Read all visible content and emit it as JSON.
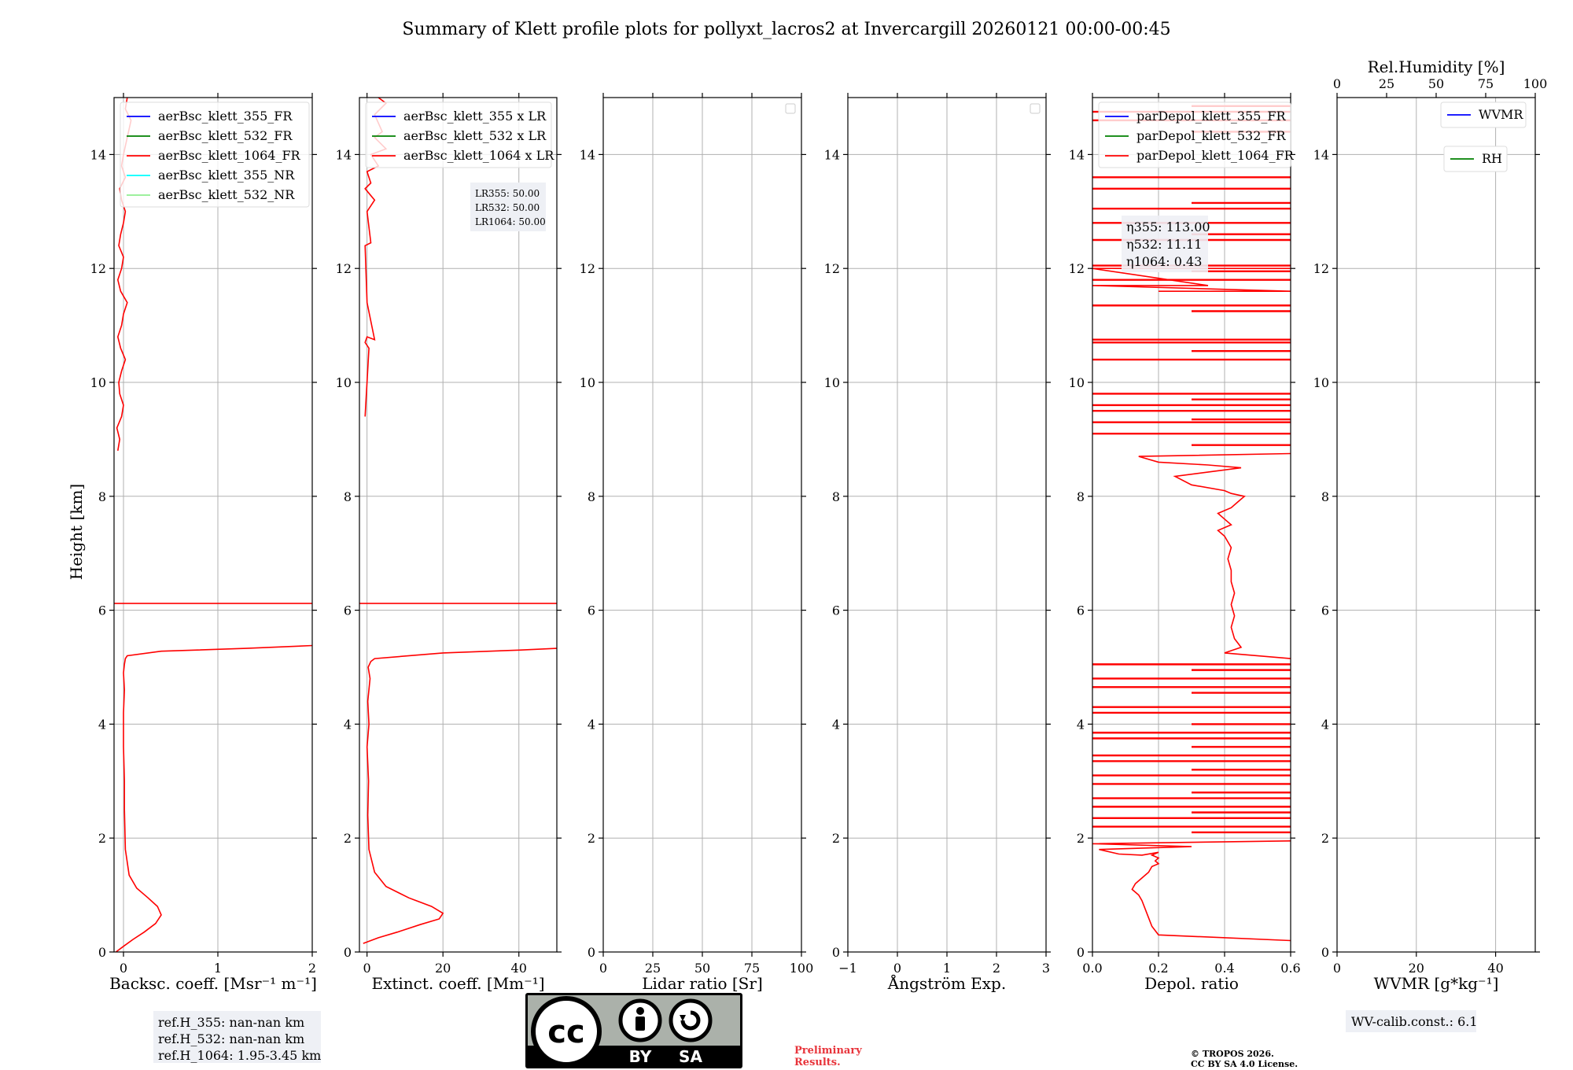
{
  "figure": {
    "title": "Summary of Klett profile plots for pollyxt_lacros2 at Invercargill 20260121 00:00-00:45",
    "ylabel": "Height [km]",
    "y_ticks": [
      "0",
      "2",
      "4",
      "6",
      "8",
      "10",
      "12",
      "14"
    ]
  },
  "colors": {
    "red": "#ff0000",
    "blue": "#0000ff",
    "green": "#008000",
    "cyan": "#00ffff",
    "lightgreen": "#90ee90",
    "grid": "#b0b0b0",
    "boxbg": "#eef0f5",
    "pred": "#e8343b"
  },
  "chart_data": [
    {
      "type": "line",
      "xlabel": "Backsc. coeff. [Msr⁻¹ m⁻¹]",
      "xlim": [
        -0.1,
        2
      ],
      "ylim": [
        0,
        15
      ],
      "x_ticks": [
        "0",
        "1",
        "2"
      ],
      "legend": [
        "aerBsc_klett_355_FR",
        "aerBsc_klett_532_FR",
        "aerBsc_klett_1064_FR",
        "aerBsc_klett_355_NR",
        "aerBsc_klett_532_NR"
      ],
      "series": [
        {
          "name": "aerBsc_klett_1064_FR",
          "x": [
            -0.08,
            0.0,
            0.1,
            0.22,
            0.34,
            0.4,
            0.36,
            0.26,
            0.14,
            0.06,
            0.02,
            0.01,
            0.01,
            0.0,
            0.0,
            0.01,
            0.0,
            0.01,
            0.02,
            0.04,
            0.4,
            1.3,
            2.0
          ],
          "y": [
            0.0,
            0.1,
            0.22,
            0.35,
            0.5,
            0.65,
            0.8,
            0.95,
            1.12,
            1.35,
            1.8,
            2.5,
            3.0,
            3.6,
            4.2,
            4.6,
            4.9,
            5.05,
            5.15,
            5.2,
            5.28,
            5.33,
            5.38
          ]
        },
        {
          "name": "aerBsc_klett_1064_FR_upper",
          "x": [
            -0.06,
            -0.04,
            -0.07,
            -0.02,
            0.0,
            -0.04,
            -0.05,
            -0.02,
            0.02,
            -0.03,
            -0.06,
            -0.02,
            0.0,
            0.04,
            -0.03,
            -0.06,
            -0.02,
            0.0,
            -0.05,
            -0.03,
            0.0,
            0.02,
            -0.02,
            -0.04,
            0.02,
            -0.02,
            0.0,
            0.04,
            0.08,
            0.02,
            0.04
          ],
          "y": [
            8.8,
            9.0,
            9.2,
            9.4,
            9.6,
            9.8,
            10.0,
            10.2,
            10.4,
            10.6,
            10.8,
            11.0,
            11.2,
            11.4,
            11.6,
            11.8,
            12.0,
            12.2,
            12.4,
            12.6,
            12.8,
            13.0,
            13.2,
            13.4,
            13.6,
            13.8,
            14.0,
            14.3,
            14.6,
            14.8,
            15.0
          ]
        },
        {
          "name": "aerBsc_klett_1064_FR_hline",
          "x": [
            -0.1,
            2.0
          ],
          "y": [
            6.12,
            6.12
          ]
        }
      ],
      "annotation": [
        "ref.H_355: nan-nan km",
        "ref.H_532: nan-nan km",
        "ref.H_1064: 1.95-3.45 km"
      ]
    },
    {
      "type": "line",
      "xlabel": "Extinct. coeff. [Mm⁻¹]",
      "xlim": [
        -2,
        50
      ],
      "ylim": [
        0,
        15
      ],
      "x_ticks": [
        "0",
        "20",
        "40"
      ],
      "legend": [
        "aerBsc_klett_355 x LR",
        "aerBsc_klett_532 x LR",
        "aerBsc_klett_1064 x LR"
      ],
      "series": [
        {
          "name": "aerBsc_klett_1064 x LR",
          "x": [
            -1.0,
            3.0,
            8.0,
            14.0,
            19.0,
            20.0,
            17.0,
            11.0,
            5.0,
            2.0,
            0.5,
            0.2,
            0.4,
            0.0,
            0.5,
            0.2,
            0.8,
            0.3,
            1.0,
            2.0,
            20.0,
            40.0,
            50.0
          ],
          "y": [
            0.15,
            0.25,
            0.35,
            0.48,
            0.58,
            0.68,
            0.8,
            0.95,
            1.15,
            1.4,
            1.8,
            2.4,
            3.0,
            3.6,
            4.0,
            4.4,
            4.8,
            5.0,
            5.1,
            5.15,
            5.25,
            5.3,
            5.33
          ]
        },
        {
          "name": "aerBsc_klett_1064 x LR_upper",
          "x": [
            -0.5,
            0.5,
            -0.5,
            0.0,
            2.0,
            0.0,
            -0.5,
            1.0,
            0.0,
            2.0,
            -0.5,
            1.0,
            0.0,
            3.0,
            1.0,
            5.0,
            2.0,
            4.0,
            2.0,
            5.0,
            3.0
          ],
          "y": [
            9.4,
            10.6,
            10.7,
            10.8,
            10.75,
            11.4,
            12.4,
            12.45,
            13.0,
            13.2,
            13.4,
            13.5,
            13.7,
            13.8,
            14.0,
            14.1,
            14.3,
            14.4,
            14.7,
            14.9,
            15.0
          ]
        },
        {
          "name": "aerBsc_klett_1064 x LR_hline",
          "x": [
            -2.0,
            50.0
          ],
          "y": [
            6.12,
            6.12
          ]
        }
      ],
      "annotation": [
        "LR355: 50.00",
        "LR532: 50.00",
        "LR1064: 50.00"
      ]
    },
    {
      "type": "line",
      "xlabel": "Lidar ratio [Sr]",
      "xlim": [
        0,
        100
      ],
      "ylim": [
        0,
        15
      ],
      "x_ticks": [
        "0",
        "25",
        "50",
        "75",
        "100"
      ],
      "legend": [],
      "series": []
    },
    {
      "type": "line",
      "xlabel": "Ångström Exp.",
      "xlim": [
        -1,
        3
      ],
      "ylim": [
        0,
        15
      ],
      "x_ticks": [
        "−1",
        "0",
        "1",
        "2",
        "3"
      ],
      "legend": [],
      "series": []
    },
    {
      "type": "line",
      "xlabel": "Depol. ratio",
      "xlim": [
        0,
        0.6
      ],
      "ylim": [
        0,
        15
      ],
      "x_ticks": [
        "0.0",
        "0.2",
        "0.4",
        "0.6"
      ],
      "legend": [
        "parDepol_klett_355_FR",
        "parDepol_klett_532_FR",
        "parDepol_klett_1064_FR"
      ],
      "series": [
        {
          "name": "parDepol_klett_1064_FR_low",
          "x": [
            0.6,
            0.2,
            0.18,
            0.17,
            0.16,
            0.15,
            0.14,
            0.13,
            0.12,
            0.13,
            0.15,
            0.17,
            0.18,
            0.2,
            0.19,
            0.2,
            0.18,
            0.2,
            0.15,
            0.08,
            0.02,
            0.3,
            0.0,
            0.6
          ],
          "y": [
            0.2,
            0.3,
            0.45,
            0.6,
            0.75,
            0.9,
            1.0,
            1.05,
            1.1,
            1.2,
            1.3,
            1.4,
            1.5,
            1.55,
            1.6,
            1.65,
            1.7,
            1.75,
            1.7,
            1.72,
            1.8,
            1.85,
            1.9,
            1.95
          ]
        },
        {
          "name": "parDepol_klett_1064_FR_mid",
          "x": [
            0.6,
            0.4,
            0.45,
            0.43,
            0.42,
            0.43,
            0.42,
            0.43,
            0.42,
            0.42,
            0.41,
            0.42,
            0.4,
            0.38,
            0.42,
            0.4,
            0.38,
            0.42,
            0.44,
            0.46,
            0.42,
            0.4,
            0.3,
            0.25,
            0.45,
            0.35,
            0.2,
            0.14,
            0.6
          ],
          "y": [
            5.15,
            5.25,
            5.35,
            5.5,
            5.7,
            5.9,
            6.1,
            6.3,
            6.5,
            6.7,
            6.9,
            7.1,
            7.3,
            7.4,
            7.5,
            7.6,
            7.7,
            7.8,
            7.9,
            8.0,
            8.05,
            8.1,
            8.2,
            8.35,
            8.5,
            8.55,
            8.6,
            8.7,
            8.75
          ]
        },
        {
          "name": "parDepol_klett_1064_FR_high",
          "x": [
            0.2,
            0.6,
            0.0,
            0.35,
            0.0,
            0.6
          ],
          "y": [
            11.6,
            11.6,
            11.7,
            11.7,
            12.0,
            12.0
          ]
        }
      ],
      "hlines_low": [
        2.1,
        2.2,
        2.35,
        2.45,
        2.55,
        2.7,
        2.8,
        2.95,
        3.1,
        3.2,
        3.35,
        3.45,
        3.6,
        3.75,
        3.85,
        4.0,
        4.2,
        4.3,
        4.55,
        4.65,
        4.8,
        4.95,
        5.05
      ],
      "hlines_high": [
        8.9,
        9.1,
        9.3,
        9.35,
        9.5,
        9.6,
        9.7,
        9.8,
        10.4,
        10.55,
        10.7,
        10.75,
        11.25,
        11.35,
        11.8,
        11.95,
        12.05,
        12.5,
        12.6,
        12.8,
        13.05,
        13.15,
        13.4,
        13.6,
        14.4,
        14.6,
        14.75,
        14.85
      ],
      "annotation": [
        "η355: 113.00",
        "η532: 11.11",
        "η1064: 0.43"
      ]
    },
    {
      "type": "line",
      "xlabel": "WVMR [g*kg⁻¹]",
      "top_xlabel": "Rel.Humidity [%]",
      "xlim": [
        0,
        50
      ],
      "ylim": [
        0,
        15
      ],
      "x_ticks": [
        "0",
        "20",
        "40"
      ],
      "top_ticks": [
        "0",
        "25",
        "50",
        "75",
        "100"
      ],
      "legend": [
        "WVMR",
        "RH"
      ],
      "series": [],
      "annotation": [
        "WV-calib.const.: 6.1"
      ]
    }
  ],
  "footer": {
    "license_badge": {
      "cc": "cc",
      "by": "BY",
      "sa": "SA"
    },
    "preliminary_line1": "Preliminary",
    "preliminary_line2": "Results.",
    "copyright_line1": "© TROPOS 2026.",
    "copyright_line2": "CC BY SA 4.0 License."
  }
}
